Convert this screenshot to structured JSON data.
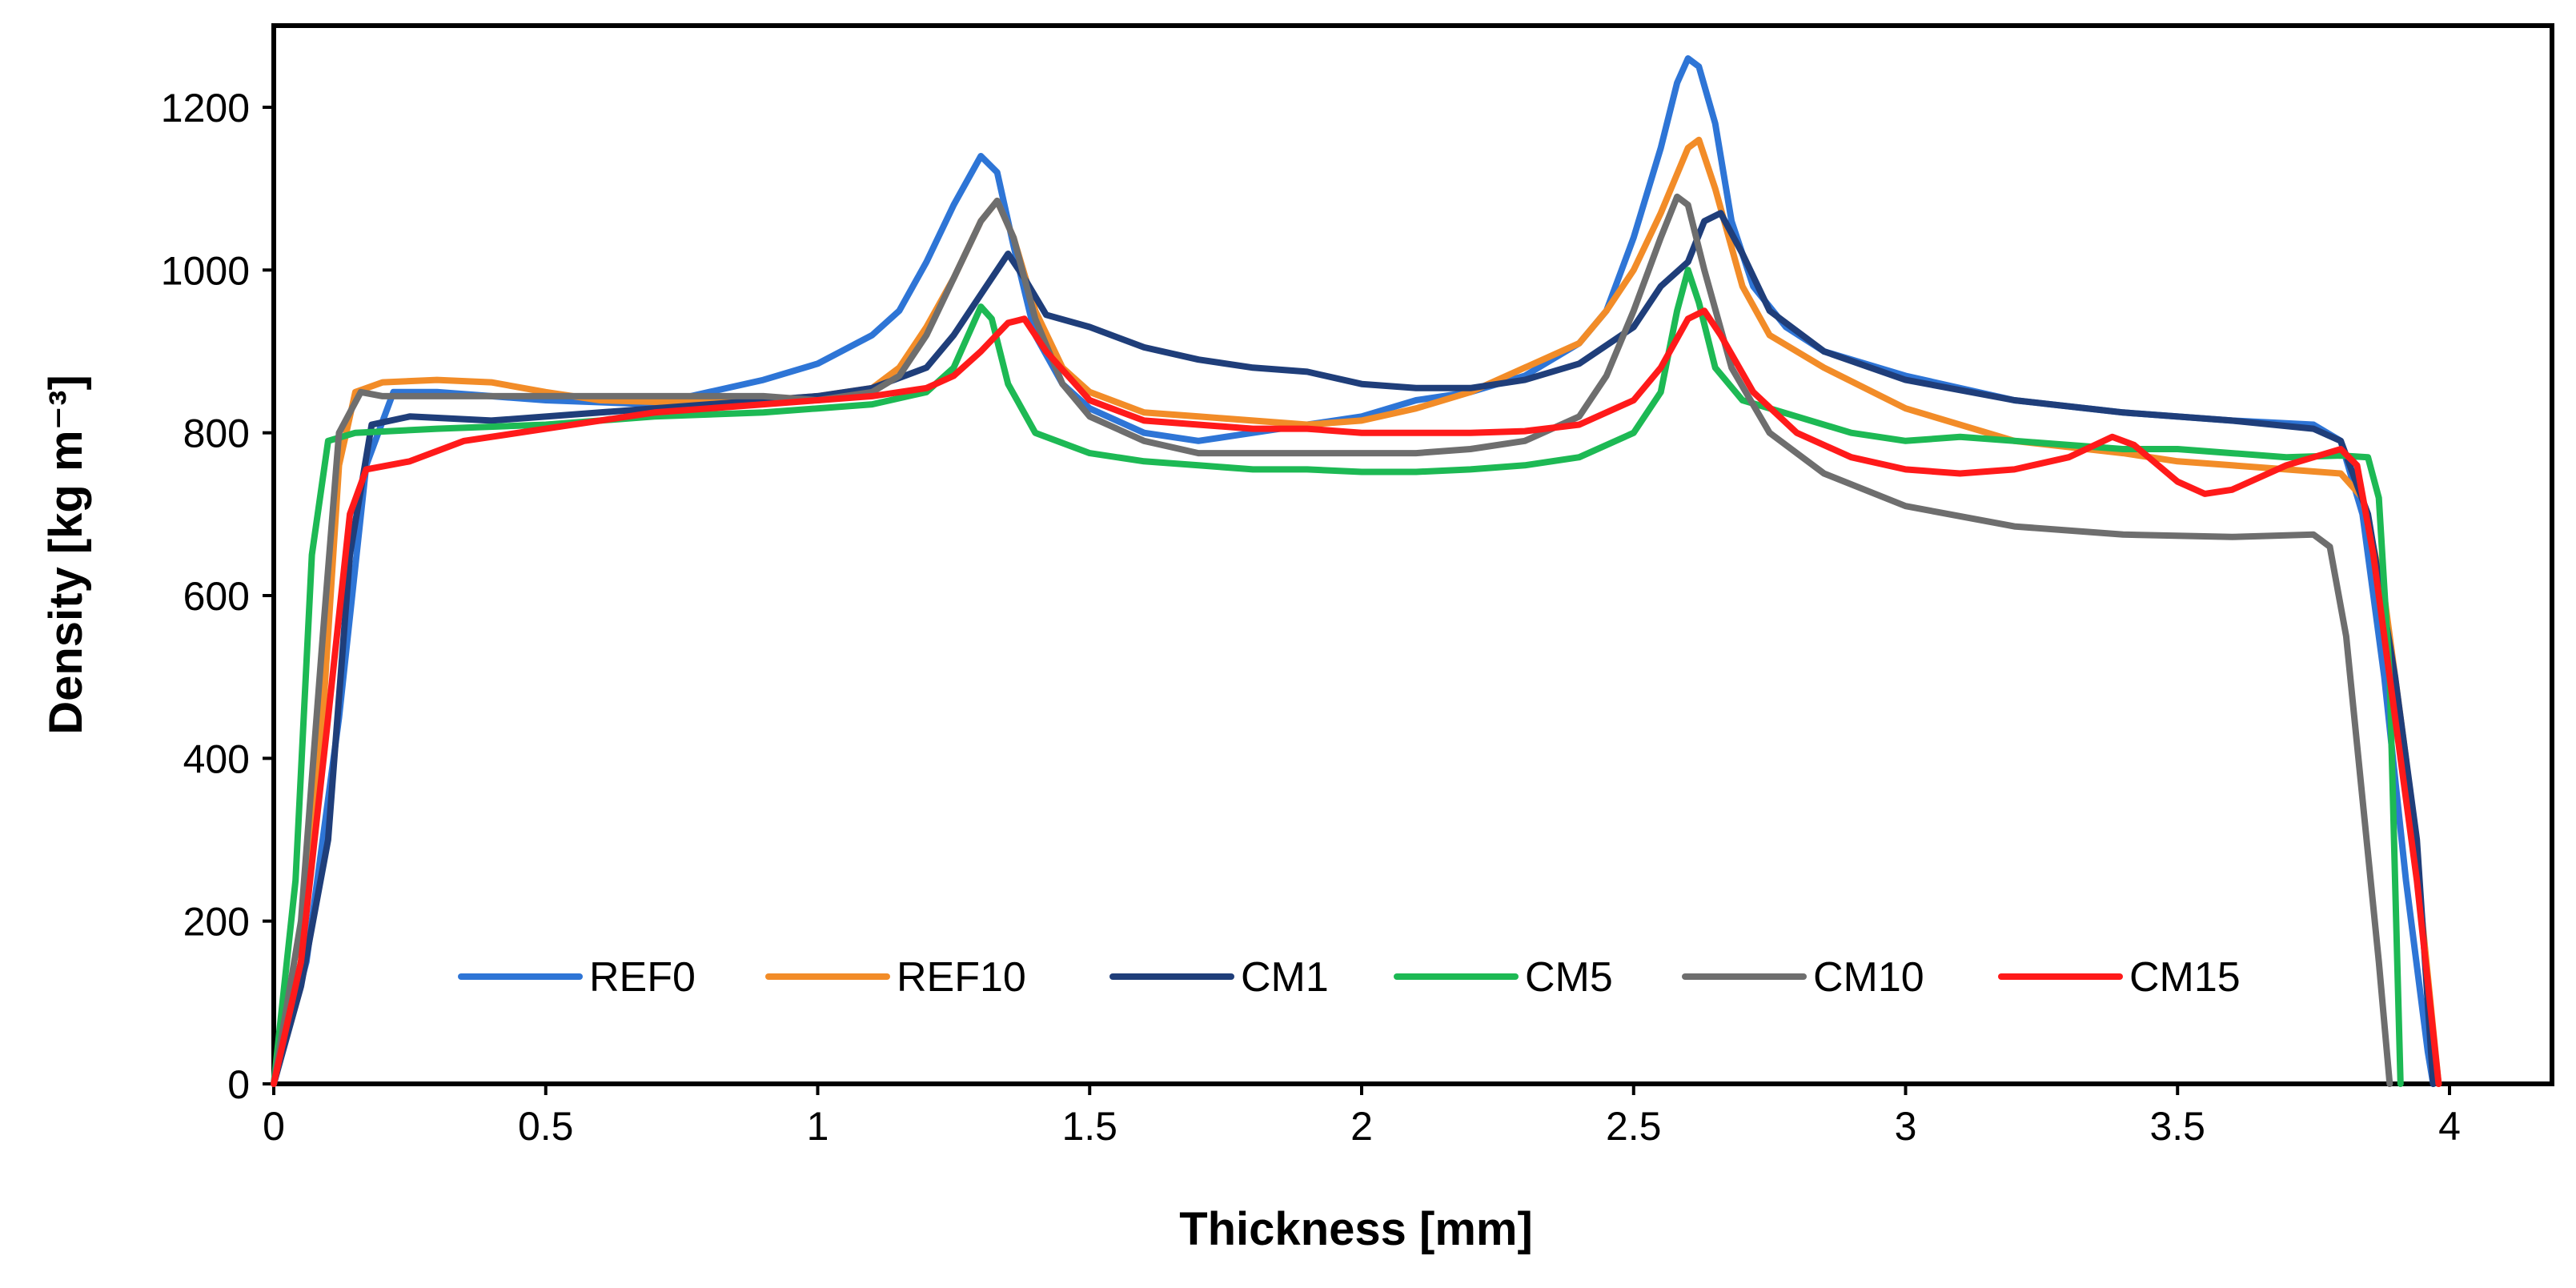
{
  "chart_data": {
    "type": "line",
    "xlabel": "Thickness [mm]",
    "ylabel": "Density [kg m⁻³]",
    "xlim": [
      0,
      4.2
    ],
    "ylim": [
      0,
      1300
    ],
    "x_ticks": [
      0,
      0.5,
      1,
      1.5,
      2,
      2.5,
      3,
      3.5,
      4
    ],
    "x_tick_labels": [
      "0",
      "0.5",
      "1",
      "1.5",
      "2",
      "2.5",
      "3",
      "3.5",
      "4"
    ],
    "y_ticks": [
      0,
      200,
      400,
      600,
      800,
      1000,
      1200
    ],
    "y_tick_labels": [
      "0",
      "200",
      "400",
      "600",
      "800",
      "1000",
      "1200"
    ],
    "grid": false,
    "legend_position": "bottom-center",
    "series": [
      {
        "name": "REF0",
        "color": "#2E75D6",
        "points": [
          [
            0,
            0
          ],
          [
            0.06,
            150
          ],
          [
            0.12,
            450
          ],
          [
            0.17,
            760
          ],
          [
            0.22,
            850
          ],
          [
            0.3,
            850
          ],
          [
            0.5,
            840
          ],
          [
            0.7,
            835
          ],
          [
            0.8,
            850
          ],
          [
            0.9,
            865
          ],
          [
            1.0,
            885
          ],
          [
            1.1,
            920
          ],
          [
            1.15,
            950
          ],
          [
            1.2,
            1010
          ],
          [
            1.25,
            1080
          ],
          [
            1.3,
            1140
          ],
          [
            1.33,
            1120
          ],
          [
            1.36,
            1030
          ],
          [
            1.4,
            920
          ],
          [
            1.45,
            860
          ],
          [
            1.5,
            830
          ],
          [
            1.6,
            800
          ],
          [
            1.7,
            790
          ],
          [
            1.8,
            800
          ],
          [
            1.9,
            810
          ],
          [
            2.0,
            820
          ],
          [
            2.1,
            840
          ],
          [
            2.2,
            850
          ],
          [
            2.3,
            870
          ],
          [
            2.4,
            910
          ],
          [
            2.45,
            950
          ],
          [
            2.5,
            1040
          ],
          [
            2.55,
            1150
          ],
          [
            2.58,
            1230
          ],
          [
            2.6,
            1260
          ],
          [
            2.62,
            1250
          ],
          [
            2.65,
            1180
          ],
          [
            2.68,
            1060
          ],
          [
            2.72,
            980
          ],
          [
            2.78,
            930
          ],
          [
            2.85,
            900
          ],
          [
            3.0,
            870
          ],
          [
            3.2,
            840
          ],
          [
            3.4,
            825
          ],
          [
            3.6,
            815
          ],
          [
            3.75,
            810
          ],
          [
            3.8,
            790
          ],
          [
            3.84,
            700
          ],
          [
            3.88,
            500
          ],
          [
            3.92,
            250
          ],
          [
            3.96,
            40
          ],
          [
            3.97,
            0
          ]
        ]
      },
      {
        "name": "REF10",
        "color": "#F28C28",
        "points": [
          [
            0,
            0
          ],
          [
            0.05,
            150
          ],
          [
            0.09,
            450
          ],
          [
            0.12,
            760
          ],
          [
            0.15,
            850
          ],
          [
            0.2,
            862
          ],
          [
            0.3,
            865
          ],
          [
            0.4,
            862
          ],
          [
            0.5,
            850
          ],
          [
            0.6,
            840
          ],
          [
            0.7,
            838
          ],
          [
            0.8,
            840
          ],
          [
            0.9,
            840
          ],
          [
            1.0,
            845
          ],
          [
            1.1,
            855
          ],
          [
            1.15,
            880
          ],
          [
            1.2,
            930
          ],
          [
            1.25,
            990
          ],
          [
            1.3,
            1060
          ],
          [
            1.33,
            1085
          ],
          [
            1.36,
            1040
          ],
          [
            1.4,
            950
          ],
          [
            1.45,
            880
          ],
          [
            1.5,
            850
          ],
          [
            1.6,
            825
          ],
          [
            1.7,
            820
          ],
          [
            1.8,
            815
          ],
          [
            1.9,
            810
          ],
          [
            2.0,
            815
          ],
          [
            2.1,
            830
          ],
          [
            2.2,
            850
          ],
          [
            2.3,
            880
          ],
          [
            2.4,
            910
          ],
          [
            2.45,
            950
          ],
          [
            2.5,
            1000
          ],
          [
            2.55,
            1070
          ],
          [
            2.6,
            1150
          ],
          [
            2.62,
            1160
          ],
          [
            2.65,
            1100
          ],
          [
            2.7,
            980
          ],
          [
            2.75,
            920
          ],
          [
            2.85,
            880
          ],
          [
            3.0,
            830
          ],
          [
            3.2,
            790
          ],
          [
            3.4,
            775
          ],
          [
            3.5,
            765
          ],
          [
            3.6,
            760
          ],
          [
            3.7,
            755
          ],
          [
            3.8,
            750
          ],
          [
            3.84,
            720
          ],
          [
            3.88,
            600
          ],
          [
            3.92,
            400
          ],
          [
            3.95,
            200
          ],
          [
            3.98,
            0
          ]
        ]
      },
      {
        "name": "CM1",
        "color": "#1F3E7A",
        "points": [
          [
            0,
            0
          ],
          [
            0.05,
            120
          ],
          [
            0.1,
            300
          ],
          [
            0.14,
            650
          ],
          [
            0.18,
            810
          ],
          [
            0.25,
            820
          ],
          [
            0.4,
            815
          ],
          [
            0.6,
            825
          ],
          [
            0.8,
            835
          ],
          [
            0.9,
            840
          ],
          [
            1.0,
            845
          ],
          [
            1.1,
            855
          ],
          [
            1.2,
            880
          ],
          [
            1.25,
            920
          ],
          [
            1.3,
            970
          ],
          [
            1.35,
            1020
          ],
          [
            1.38,
            990
          ],
          [
            1.42,
            945
          ],
          [
            1.5,
            930
          ],
          [
            1.6,
            905
          ],
          [
            1.7,
            890
          ],
          [
            1.8,
            880
          ],
          [
            1.9,
            875
          ],
          [
            2.0,
            860
          ],
          [
            2.1,
            855
          ],
          [
            2.2,
            855
          ],
          [
            2.3,
            865
          ],
          [
            2.4,
            885
          ],
          [
            2.5,
            930
          ],
          [
            2.55,
            980
          ],
          [
            2.6,
            1010
          ],
          [
            2.63,
            1060
          ],
          [
            2.66,
            1070
          ],
          [
            2.7,
            1020
          ],
          [
            2.75,
            950
          ],
          [
            2.85,
            900
          ],
          [
            3.0,
            865
          ],
          [
            3.2,
            840
          ],
          [
            3.4,
            825
          ],
          [
            3.6,
            815
          ],
          [
            3.75,
            805
          ],
          [
            3.8,
            790
          ],
          [
            3.85,
            700
          ],
          [
            3.9,
            500
          ],
          [
            3.94,
            300
          ],
          [
            3.97,
            0
          ]
        ]
      },
      {
        "name": "CM5",
        "color": "#1DB954",
        "points": [
          [
            0,
            0
          ],
          [
            0.04,
            250
          ],
          [
            0.07,
            650
          ],
          [
            0.1,
            790
          ],
          [
            0.15,
            800
          ],
          [
            0.3,
            805
          ],
          [
            0.5,
            810
          ],
          [
            0.7,
            820
          ],
          [
            0.9,
            825
          ],
          [
            1.0,
            830
          ],
          [
            1.1,
            835
          ],
          [
            1.2,
            850
          ],
          [
            1.25,
            880
          ],
          [
            1.3,
            955
          ],
          [
            1.32,
            940
          ],
          [
            1.35,
            860
          ],
          [
            1.4,
            800
          ],
          [
            1.5,
            775
          ],
          [
            1.6,
            765
          ],
          [
            1.7,
            760
          ],
          [
            1.8,
            755
          ],
          [
            1.9,
            755
          ],
          [
            2.0,
            752
          ],
          [
            2.1,
            752
          ],
          [
            2.2,
            755
          ],
          [
            2.3,
            760
          ],
          [
            2.4,
            770
          ],
          [
            2.5,
            800
          ],
          [
            2.55,
            850
          ],
          [
            2.58,
            950
          ],
          [
            2.6,
            1000
          ],
          [
            2.62,
            960
          ],
          [
            2.65,
            880
          ],
          [
            2.7,
            840
          ],
          [
            2.8,
            820
          ],
          [
            2.9,
            800
          ],
          [
            3.0,
            790
          ],
          [
            3.1,
            795
          ],
          [
            3.2,
            790
          ],
          [
            3.3,
            785
          ],
          [
            3.4,
            780
          ],
          [
            3.5,
            780
          ],
          [
            3.6,
            775
          ],
          [
            3.7,
            770
          ],
          [
            3.8,
            772
          ],
          [
            3.85,
            770
          ],
          [
            3.87,
            720
          ],
          [
            3.89,
            500
          ],
          [
            3.9,
            250
          ],
          [
            3.91,
            0
          ]
        ]
      },
      {
        "name": "CM10",
        "color": "#6E6E6E",
        "points": [
          [
            0,
            0
          ],
          [
            0.05,
            200
          ],
          [
            0.09,
            550
          ],
          [
            0.12,
            800
          ],
          [
            0.16,
            850
          ],
          [
            0.2,
            845
          ],
          [
            0.3,
            845
          ],
          [
            0.5,
            845
          ],
          [
            0.7,
            845
          ],
          [
            0.9,
            845
          ],
          [
            1.0,
            840
          ],
          [
            1.1,
            850
          ],
          [
            1.15,
            870
          ],
          [
            1.2,
            920
          ],
          [
            1.25,
            990
          ],
          [
            1.3,
            1060
          ],
          [
            1.33,
            1085
          ],
          [
            1.36,
            1040
          ],
          [
            1.4,
            940
          ],
          [
            1.45,
            860
          ],
          [
            1.5,
            820
          ],
          [
            1.6,
            790
          ],
          [
            1.7,
            775
          ],
          [
            1.8,
            775
          ],
          [
            1.9,
            775
          ],
          [
            2.0,
            775
          ],
          [
            2.1,
            775
          ],
          [
            2.2,
            780
          ],
          [
            2.3,
            790
          ],
          [
            2.4,
            820
          ],
          [
            2.45,
            870
          ],
          [
            2.5,
            950
          ],
          [
            2.55,
            1040
          ],
          [
            2.58,
            1090
          ],
          [
            2.6,
            1080
          ],
          [
            2.63,
            1000
          ],
          [
            2.68,
            880
          ],
          [
            2.75,
            800
          ],
          [
            2.85,
            750
          ],
          [
            3.0,
            710
          ],
          [
            3.2,
            685
          ],
          [
            3.4,
            675
          ],
          [
            3.6,
            672
          ],
          [
            3.75,
            675
          ],
          [
            3.78,
            660
          ],
          [
            3.81,
            550
          ],
          [
            3.84,
            350
          ],
          [
            3.87,
            150
          ],
          [
            3.89,
            0
          ]
        ]
      },
      {
        "name": "CM15",
        "color": "#FF1A1A",
        "points": [
          [
            0,
            0
          ],
          [
            0.05,
            150
          ],
          [
            0.1,
            450
          ],
          [
            0.14,
            700
          ],
          [
            0.17,
            755
          ],
          [
            0.25,
            765
          ],
          [
            0.35,
            790
          ],
          [
            0.5,
            805
          ],
          [
            0.7,
            825
          ],
          [
            0.9,
            835
          ],
          [
            1.0,
            840
          ],
          [
            1.1,
            845
          ],
          [
            1.2,
            855
          ],
          [
            1.25,
            870
          ],
          [
            1.3,
            900
          ],
          [
            1.35,
            935
          ],
          [
            1.38,
            940
          ],
          [
            1.42,
            900
          ],
          [
            1.5,
            840
          ],
          [
            1.6,
            815
          ],
          [
            1.7,
            810
          ],
          [
            1.8,
            805
          ],
          [
            1.9,
            805
          ],
          [
            2.0,
            800
          ],
          [
            2.1,
            800
          ],
          [
            2.2,
            800
          ],
          [
            2.3,
            802
          ],
          [
            2.4,
            810
          ],
          [
            2.5,
            840
          ],
          [
            2.55,
            880
          ],
          [
            2.6,
            940
          ],
          [
            2.63,
            950
          ],
          [
            2.66,
            920
          ],
          [
            2.72,
            850
          ],
          [
            2.8,
            800
          ],
          [
            2.9,
            770
          ],
          [
            3.0,
            755
          ],
          [
            3.1,
            750
          ],
          [
            3.2,
            755
          ],
          [
            3.3,
            770
          ],
          [
            3.38,
            795
          ],
          [
            3.42,
            785
          ],
          [
            3.5,
            740
          ],
          [
            3.55,
            725
          ],
          [
            3.6,
            730
          ],
          [
            3.7,
            760
          ],
          [
            3.8,
            780
          ],
          [
            3.83,
            760
          ],
          [
            3.86,
            650
          ],
          [
            3.9,
            450
          ],
          [
            3.94,
            250
          ],
          [
            3.98,
            0
          ]
        ]
      }
    ]
  }
}
